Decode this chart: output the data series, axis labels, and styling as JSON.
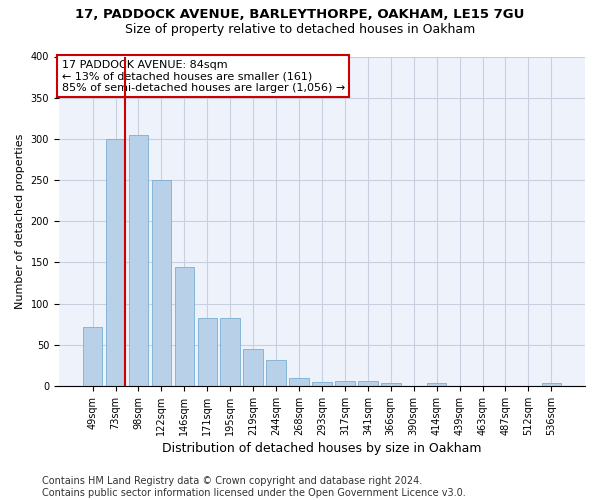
{
  "title1": "17, PADDOCK AVENUE, BARLEYTHORPE, OAKHAM, LE15 7GU",
  "title2": "Size of property relative to detached houses in Oakham",
  "xlabel": "Distribution of detached houses by size in Oakham",
  "ylabel": "Number of detached properties",
  "categories": [
    "49sqm",
    "73sqm",
    "98sqm",
    "122sqm",
    "146sqm",
    "171sqm",
    "195sqm",
    "219sqm",
    "244sqm",
    "268sqm",
    "293sqm",
    "317sqm",
    "341sqm",
    "366sqm",
    "390sqm",
    "414sqm",
    "439sqm",
    "463sqm",
    "487sqm",
    "512sqm",
    "536sqm"
  ],
  "values": [
    72,
    300,
    305,
    250,
    145,
    83,
    83,
    45,
    32,
    10,
    5,
    6,
    6,
    3,
    0,
    4,
    0,
    0,
    0,
    0,
    3
  ],
  "bar_color": "#b8d0e8",
  "bar_edge_color": "#7aaed4",
  "vline_color": "#cc0000",
  "vline_pos": 1.425,
  "annotation_text": "17 PADDOCK AVENUE: 84sqm\n← 13% of detached houses are smaller (161)\n85% of semi-detached houses are larger (1,056) →",
  "annotation_box_facecolor": "#ffffff",
  "annotation_box_edgecolor": "#cc0000",
  "ylim": [
    0,
    400
  ],
  "yticks": [
    0,
    50,
    100,
    150,
    200,
    250,
    300,
    350,
    400
  ],
  "footer": "Contains HM Land Registry data © Crown copyright and database right 2024.\nContains public sector information licensed under the Open Government Licence v3.0.",
  "bg_color": "#ffffff",
  "plot_bg_color": "#eef2fb",
  "grid_color": "#c8d0e0",
  "title1_fontsize": 9.5,
  "title2_fontsize": 9,
  "xlabel_fontsize": 9,
  "ylabel_fontsize": 8,
  "tick_fontsize": 7,
  "footer_fontsize": 7
}
